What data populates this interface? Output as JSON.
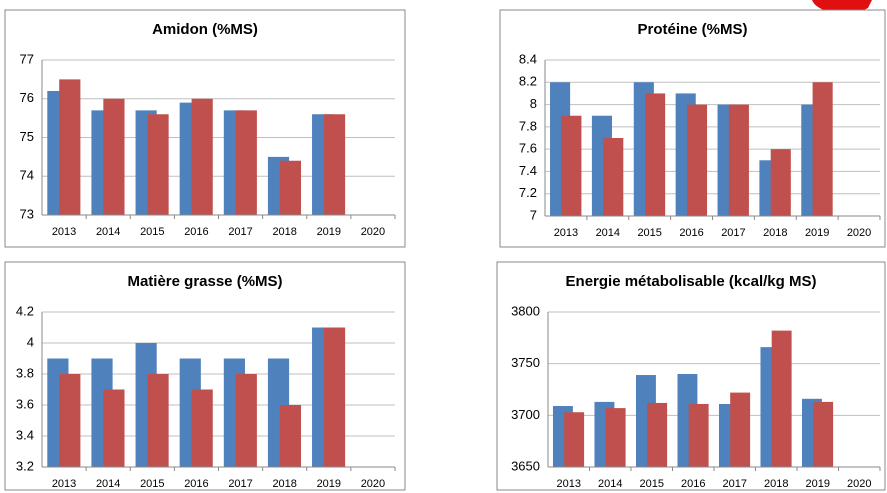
{
  "chart_data": [
    {
      "type": "bar",
      "title": "Amidon (%MS)",
      "categories": [
        "2013",
        "2014",
        "2015",
        "2016",
        "2017",
        "2018",
        "2019",
        "2020"
      ],
      "series": [
        {
          "color": "#4f81bd",
          "values": [
            76.2,
            75.7,
            75.7,
            75.9,
            75.7,
            74.5,
            75.6,
            null
          ]
        },
        {
          "color": "#c0504d",
          "values": [
            76.5,
            76.0,
            75.6,
            76.0,
            75.7,
            74.4,
            75.6,
            null
          ]
        }
      ],
      "ylim": [
        73,
        77
      ],
      "yticks": [
        73,
        74,
        75,
        76,
        77
      ],
      "grid": true
    },
    {
      "type": "bar",
      "title": "Protéine (%MS)",
      "categories": [
        "2013",
        "2014",
        "2015",
        "2016",
        "2017",
        "2018",
        "2019",
        "2020"
      ],
      "series": [
        {
          "color": "#4f81bd",
          "values": [
            8.2,
            7.9,
            8.2,
            8.1,
            8.0,
            7.5,
            8.0,
            null
          ]
        },
        {
          "color": "#c0504d",
          "values": [
            7.9,
            7.7,
            8.1,
            8.0,
            8.0,
            7.6,
            8.2,
            null
          ]
        }
      ],
      "ylim": [
        7,
        8.4
      ],
      "yticks": [
        7,
        7.2,
        7.4,
        7.6,
        7.8,
        8,
        8.2,
        8.4
      ],
      "grid": true
    },
    {
      "type": "bar",
      "title": "Matière grasse (%MS)",
      "categories": [
        "2013",
        "2014",
        "2015",
        "2016",
        "2017",
        "2018",
        "2019",
        "2020"
      ],
      "series": [
        {
          "color": "#4f81bd",
          "values": [
            3.9,
            3.9,
            4.0,
            3.9,
            3.9,
            3.9,
            4.1,
            null
          ]
        },
        {
          "color": "#c0504d",
          "values": [
            3.8,
            3.7,
            3.8,
            3.7,
            3.8,
            3.6,
            4.1,
            null
          ]
        }
      ],
      "ylim": [
        3.2,
        4.2
      ],
      "yticks": [
        3.2,
        3.4,
        3.6,
        3.8,
        4,
        4.2
      ],
      "grid": true
    },
    {
      "type": "bar",
      "title": "Energie métabolisable (kcal/kg MS)",
      "categories": [
        "2013",
        "2014",
        "2015",
        "2016",
        "2017",
        "2018",
        "2019",
        "2020"
      ],
      "series": [
        {
          "color": "#4f81bd",
          "values": [
            3709,
            3713,
            3739,
            3740,
            3711,
            3766,
            3716,
            null
          ]
        },
        {
          "color": "#c0504d",
          "values": [
            3703,
            3707,
            3712,
            3711,
            3722,
            3782,
            3713,
            null
          ]
        }
      ],
      "ylim": [
        3650,
        3800
      ],
      "yticks": [
        3650,
        3700,
        3750,
        3800
      ],
      "grid": true
    }
  ]
}
